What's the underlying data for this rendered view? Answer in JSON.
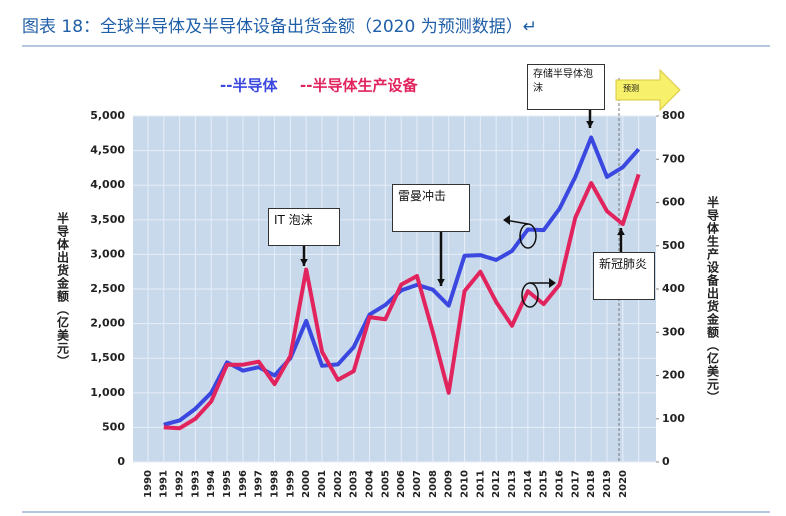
{
  "chart_data": {
    "type": "line",
    "title": "图表 18：全球半导体及半导体设备出货金额（2020 为预测数据）↵",
    "categories": [
      "1990",
      "1991",
      "1992",
      "1993",
      "1994",
      "1995",
      "1996",
      "1997",
      "1998",
      "1999",
      "2000",
      "2001",
      "2002",
      "2003",
      "2004",
      "2005",
      "2006",
      "2007",
      "2008",
      "2009",
      "2010",
      "2011",
      "2012",
      "2013",
      "2014",
      "2015",
      "2016",
      "2017",
      "2018",
      "2019",
      "2020",
      null
    ],
    "series": [
      {
        "name": "--半导体",
        "color": "#3a48e0",
        "values": [
          null,
          540,
          600,
          770,
          1000,
          1440,
          1320,
          1370,
          1250,
          1500,
          2040,
          1390,
          1410,
          1660,
          2130,
          2270,
          2480,
          2560,
          2490,
          2260,
          2980,
          2990,
          2920,
          3050,
          3360,
          3350,
          3660,
          4120,
          4690,
          4120,
          4260,
          4520
        ]
      },
      {
        "name": "--半导体生产设备",
        "color": "#e2245e",
        "axis": "y2",
        "values": [
          null,
          80,
          78,
          100,
          140,
          225,
          225,
          232,
          180,
          245,
          445,
          255,
          190,
          210,
          335,
          330,
          410,
          430,
          300,
          160,
          395,
          440,
          370,
          315,
          395,
          365,
          410,
          565,
          645,
          580,
          550,
          665
        ]
      }
    ],
    "ylabel": "半导体出货金额（亿美元）",
    "y2label": "半导体生产设备出货金额（亿美元）",
    "ylim": [
      0,
      5000
    ],
    "yticks": [
      0,
      500,
      {
        "value": 1000,
        "label": "1,000"
      },
      {
        "value": 1500,
        "label": "1,500"
      },
      {
        "value": 2000,
        "label": "2,000"
      },
      {
        "value": 2500,
        "label": "2,500"
      },
      {
        "value": 3000,
        "label": "3,000"
      },
      {
        "value": 3500,
        "label": "3,500"
      },
      {
        "value": 4000,
        "label": "4,000"
      },
      {
        "value": 4500,
        "label": "4,500"
      },
      {
        "value": 5000,
        "label": "5,000"
      }
    ],
    "y2lim": [
      0,
      800
    ],
    "y2ticks": [
      0,
      100,
      200,
      300,
      400,
      500,
      600,
      700,
      800
    ],
    "grid": true,
    "annotations": [
      "IT 泡沫",
      "雷曼冲击",
      "存储半导体泡沫",
      "新冠肺炎",
      "预测"
    ]
  }
}
